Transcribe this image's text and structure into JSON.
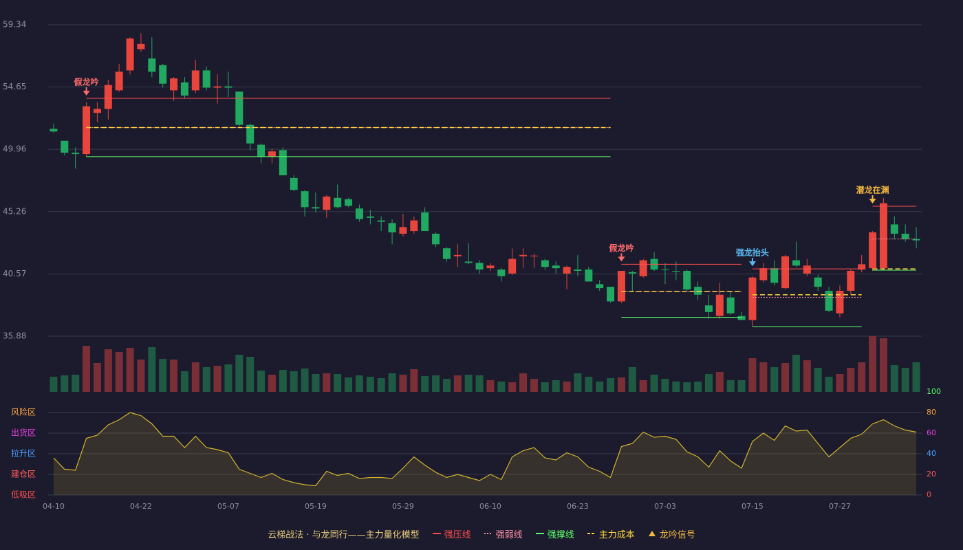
{
  "chart_data": [
    {
      "type": "candlestick",
      "categories": [
        "04-10",
        null,
        null,
        null,
        null,
        null,
        null,
        null,
        "04-22",
        null,
        null,
        null,
        null,
        null,
        null,
        null,
        "05-07",
        null,
        null,
        null,
        null,
        null,
        null,
        null,
        "05-19",
        null,
        null,
        null,
        null,
        null,
        null,
        null,
        "05-29",
        null,
        null,
        null,
        null,
        null,
        null,
        null,
        "06-10",
        null,
        null,
        null,
        null,
        null,
        null,
        null,
        "06-23",
        null,
        null,
        null,
        null,
        null,
        null,
        null,
        "07-03",
        null,
        null,
        null,
        null,
        null,
        null,
        null,
        "07-15",
        null,
        null,
        null,
        null,
        null,
        null,
        null,
        "07-27",
        null,
        null,
        null,
        null,
        null,
        null,
        null
      ],
      "open": [
        51.5,
        50.6,
        49.7,
        49.6,
        52.7,
        53.0,
        54.4,
        55.9,
        57.5,
        56.8,
        56.3,
        54.4,
        55.0,
        54.4,
        55.9,
        54.6,
        54.7,
        54.3,
        51.8,
        50.3,
        49.4,
        49.9,
        47.8,
        46.8,
        45.6,
        45.4,
        46.3,
        46.2,
        45.5,
        44.9,
        44.6,
        44.4,
        43.6,
        43.8,
        45.2,
        43.6,
        42.5,
        41.9,
        41.5,
        41.4,
        41.0,
        40.9,
        40.6,
        41.9,
        41.9,
        41.6,
        41.2,
        40.6,
        40.9,
        40.9,
        39.8,
        39.6,
        38.5,
        40.7,
        40.4,
        41.7,
        40.9,
        40.8,
        40.8,
        39.6,
        38.2,
        37.4,
        38.8,
        37.4,
        37.1,
        40.1,
        41.0,
        39.5,
        41.6,
        40.6,
        40.3,
        39.3,
        37.6,
        39.3,
        40.9,
        41.0,
        41.0,
        44.3,
        43.6,
        43.2
      ],
      "high": [
        51.9,
        50.6,
        50.1,
        53.5,
        53.5,
        55.2,
        56.4,
        58.4,
        58.7,
        58.4,
        56.4,
        55.4,
        55.4,
        56.7,
        56.2,
        55.6,
        55.8,
        54.3,
        51.9,
        50.4,
        50.0,
        50.1,
        48.0,
        46.9,
        46.7,
        46.5,
        47.3,
        46.3,
        45.8,
        45.4,
        44.9,
        44.7,
        45.1,
        44.9,
        45.6,
        43.7,
        42.6,
        42.8,
        42.9,
        41.6,
        41.4,
        41.0,
        42.5,
        42.5,
        42.1,
        41.7,
        41.5,
        41.2,
        42.0,
        41.1,
        40.1,
        39.6,
        40.8,
        40.8,
        41.7,
        42.2,
        41.4,
        41.5,
        40.9,
        40.0,
        39.0,
        39.9,
        39.2,
        37.7,
        40.4,
        41.4,
        41.6,
        42.0,
        43.0,
        41.7,
        40.5,
        39.6,
        39.7,
        40.9,
        42.0,
        43.8,
        46.3,
        44.9,
        44.3,
        44.1
      ],
      "low": [
        51.2,
        49.5,
        48.5,
        49.4,
        52.0,
        52.2,
        54.3,
        55.6,
        57.3,
        55.4,
        54.6,
        53.6,
        53.8,
        54.2,
        54.4,
        53.4,
        53.9,
        51.7,
        49.9,
        48.9,
        48.9,
        48.0,
        46.8,
        44.9,
        45.2,
        44.8,
        45.5,
        45.6,
        44.5,
        44.3,
        43.8,
        42.8,
        43.4,
        43.6,
        43.8,
        42.6,
        41.5,
        41.1,
        41.3,
        40.6,
        40.8,
        40.0,
        40.5,
        41.0,
        41.0,
        40.9,
        40.6,
        39.4,
        40.4,
        40.0,
        39.3,
        38.4,
        38.4,
        39.2,
        40.3,
        40.8,
        39.8,
        40.1,
        39.3,
        38.6,
        37.2,
        37.2,
        37.5,
        37.1,
        36.6,
        39.9,
        39.7,
        39.4,
        41.1,
        40.4,
        39.3,
        37.7,
        37.3,
        39.0,
        40.7,
        40.8,
        40.9,
        43.2,
        43.0,
        42.5
      ],
      "close": [
        51.3,
        49.7,
        49.6,
        53.2,
        53.0,
        54.8,
        55.8,
        58.3,
        57.9,
        55.8,
        54.9,
        55.3,
        54.0,
        55.9,
        54.6,
        54.7,
        54.6,
        51.8,
        50.4,
        49.4,
        49.8,
        48.0,
        46.9,
        45.6,
        45.5,
        46.4,
        45.6,
        45.7,
        44.7,
        44.8,
        44.5,
        43.7,
        44.1,
        44.6,
        43.8,
        42.8,
        41.7,
        42.0,
        41.4,
        40.9,
        41.2,
        40.4,
        41.7,
        42.0,
        41.95,
        41.1,
        41.0,
        41.1,
        40.8,
        40.0,
        39.5,
        38.5,
        40.8,
        40.6,
        41.6,
        40.9,
        40.85,
        40.75,
        39.4,
        39.0,
        37.7,
        39.0,
        37.6,
        37.1,
        40.3,
        41.0,
        39.9,
        41.9,
        41.2,
        41.2,
        39.6,
        37.8,
        39.3,
        40.8,
        41.3,
        43.7,
        45.9,
        43.6,
        43.2,
        43.1
      ],
      "up_color": "#e8453c",
      "down_color": "#21a861",
      "ylim": [
        35.88,
        59.34
      ],
      "yticks": [
        59.34,
        54.65,
        49.96,
        45.26,
        40.57,
        35.88
      ],
      "grid": true,
      "levels": [
        {
          "start": 3,
          "end": 51,
          "resistance": 53.8,
          "weak": 51.6,
          "cost": 51.6,
          "support": 49.4,
          "signal": "假龙吟",
          "signal_color": "#ff6b6b"
        },
        {
          "start": 52,
          "end": 63,
          "resistance": 41.3,
          "weak": 39.25,
          "cost": 39.25,
          "support": 37.3,
          "signal": "假龙吟",
          "signal_color": "#ff6b6b"
        },
        {
          "start": 64,
          "end": 74,
          "resistance": 40.95,
          "weak": 38.8,
          "cost": 39.0,
          "support": 36.6,
          "signal": "强龙抬头",
          "signal_color": "#5ab8f0"
        },
        {
          "start": 75,
          "end": 79,
          "resistance": 45.67,
          "weak": 43.2,
          "cost": 40.95,
          "support": 40.85,
          "signal": "潜龙在渊",
          "signal_color": "#f5b942"
        }
      ],
      "legend": {
        "title": "云梯战法 · 与龙同行——主力量化模型",
        "title_color": "#e6c87a",
        "items": [
          {
            "label": "强压线",
            "color": "#ff4d4d",
            "style": "solid"
          },
          {
            "label": "强弱线",
            "color": "#ff8fa3",
            "style": "dotted"
          },
          {
            "label": "强撑线",
            "color": "#5cff6a",
            "style": "solid"
          },
          {
            "label": "主力成本",
            "color": "#ffd43b",
            "style": "dashed"
          },
          {
            "label": "龙吟信号",
            "color": "#f5b942",
            "style": "triangle"
          }
        ]
      }
    },
    {
      "type": "bar",
      "values": [
        22,
        24,
        25,
        67,
        42,
        62,
        58,
        64,
        47,
        65,
        48,
        47,
        30,
        43,
        36,
        38,
        40,
        54,
        51,
        31,
        25,
        32,
        30,
        34,
        26,
        27,
        26,
        21,
        24,
        22,
        20,
        27,
        25,
        33,
        23,
        24,
        19,
        24,
        25,
        24,
        17,
        15,
        14,
        27,
        19,
        14,
        17,
        15,
        27,
        22,
        15,
        20,
        21,
        36,
        17,
        25,
        19,
        15,
        14,
        15,
        26,
        29,
        17,
        17,
        49,
        43,
        36,
        42,
        54,
        46,
        35,
        22,
        26,
        35,
        43,
        81,
        78,
        39,
        35,
        43
      ],
      "up_color": "#7a2f36",
      "down_color": "#1f5a43",
      "ylim": [
        0,
        81
      ]
    },
    {
      "type": "line",
      "values": [
        36,
        25,
        24,
        55,
        58,
        68,
        73,
        80,
        77,
        69,
        57,
        57,
        46,
        57,
        46,
        44,
        41,
        25,
        21,
        17,
        21,
        15,
        12,
        10,
        9,
        23,
        19,
        21,
        16,
        17,
        17,
        16,
        26,
        37,
        29,
        22,
        17,
        20,
        17,
        14,
        20,
        15,
        37,
        43,
        46,
        36,
        34,
        41,
        37,
        27,
        23,
        17,
        47,
        50,
        61,
        56,
        57,
        54,
        42,
        37,
        27,
        43,
        33,
        26,
        52,
        60,
        53,
        67,
        62,
        63,
        50,
        37,
        46,
        55,
        59,
        69,
        73,
        67,
        63,
        61
      ],
      "color": "#d4b52d",
      "ylim": [
        0,
        100
      ],
      "yticks": [
        0,
        20,
        40,
        60,
        80,
        100
      ],
      "ytick_colors": [
        "#ff4d4d",
        "#ff5a5a",
        "#4a9eff",
        "#e040e0",
        "#f0a040",
        "#5cff6a"
      ],
      "zones": [
        {
          "value": 80,
          "label": "风险区",
          "color": "#f0a040"
        },
        {
          "value": 60,
          "label": "出货区",
          "color": "#e040e0"
        },
        {
          "value": 40,
          "label": "拉升区",
          "color": "#4a9eff"
        },
        {
          "value": 20,
          "label": "建仓区",
          "color": "#ff5a5a"
        },
        {
          "value": 0,
          "label": "低吸区",
          "color": "#ff4d4d"
        }
      ]
    }
  ]
}
